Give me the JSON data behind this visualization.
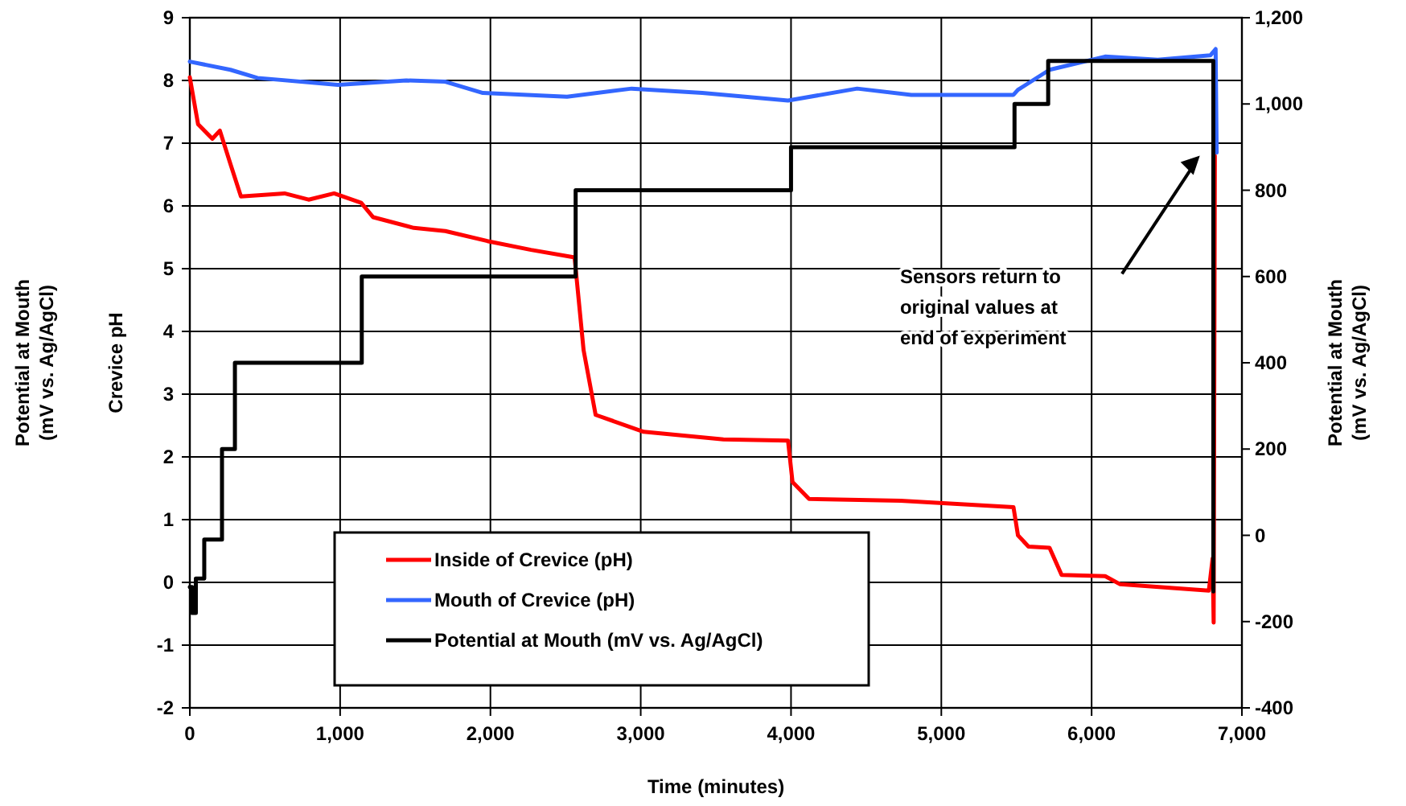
{
  "chart_data": {
    "type": "line",
    "xlabel": "Time (minutes)",
    "ylabel": "Crevice pH",
    "y2label": "Potential at Mouth (mV vs. Ag/AgCl)",
    "xlim": [
      0,
      7000
    ],
    "xticks": [
      0,
      {
        "value": 1000,
        "label": "1,000"
      },
      {
        "value": 2000,
        "label": "2,000"
      },
      {
        "value": 3000,
        "label": "3,000"
      },
      {
        "value": 4000,
        "label": "4,000"
      },
      {
        "value": 5000,
        "label": "5,000"
      },
      {
        "value": 6000,
        "label": "6,000"
      },
      {
        "value": 7000,
        "label": "7,000"
      }
    ],
    "ylim": [
      -2,
      9
    ],
    "yticks": [
      -2,
      -1,
      0,
      1,
      2,
      3,
      4,
      5,
      6,
      7,
      8,
      9
    ],
    "y2lim": [
      -400,
      1200
    ],
    "y2ticks": [
      -400,
      -200,
      0,
      200,
      400,
      600,
      800,
      {
        "value": 1000,
        "label": "1,000"
      },
      {
        "value": 1200,
        "label": "1,200"
      }
    ],
    "grid": true,
    "legend": "bottom left",
    "line_style": "solid",
    "annotations": [
      "Potential at Mouth (mV vs. Ag/AgCl)",
      "Sensors return to original values at end of experiment"
    ],
    "series": [
      {
        "name": "Inside of Crevice (pH)",
        "color": "#ff0000",
        "x": [
          0,
          55,
          150,
          200,
          270,
          340,
          630,
          790,
          960,
          1140,
          1220,
          1490,
          1700,
          1980,
          2270,
          2560,
          2620,
          2700,
          3020,
          3550,
          3980,
          4010,
          4120,
          4730,
          5480,
          5510,
          5580,
          5720,
          5800,
          6090,
          6190,
          6780,
          6805,
          6812,
          6820
        ],
        "values": [
          8.05,
          7.3,
          7.07,
          7.2,
          6.67,
          6.15,
          6.2,
          6.1,
          6.2,
          6.05,
          5.82,
          5.65,
          5.6,
          5.44,
          5.3,
          5.18,
          3.7,
          2.67,
          2.4,
          2.28,
          2.26,
          1.6,
          1.33,
          1.3,
          1.2,
          0.75,
          0.57,
          0.55,
          0.12,
          0.1,
          -0.03,
          -0.13,
          0.38,
          -0.64,
          6.8
        ]
      },
      {
        "name": "Mouth of Crevice (pH)",
        "color": "#3366ff",
        "x": [
          0,
          270,
          450,
          985,
          1440,
          1700,
          1950,
          2510,
          2940,
          3410,
          3980,
          4440,
          4800,
          5480,
          5510,
          5720,
          6090,
          6440,
          6790,
          6825,
          6832
        ],
        "values": [
          8.3,
          8.17,
          8.04,
          7.93,
          8.0,
          7.98,
          7.8,
          7.74,
          7.87,
          7.8,
          7.68,
          7.87,
          7.77,
          7.77,
          7.85,
          8.17,
          8.38,
          8.33,
          8.4,
          8.5,
          6.85
        ]
      },
      {
        "name": "Potential at Mouth (mV vs. Ag/AgCl)",
        "type": "step",
        "axis": "y2",
        "color": "#000000",
        "x": [
          0,
          15,
          40,
          96,
          214,
          300,
          1144,
          2567,
          4000,
          5487,
          5711,
          6810
        ],
        "values": [
          -120,
          -180,
          -100,
          -10,
          200,
          400,
          600,
          800,
          900,
          1000,
          1100,
          -130
        ]
      }
    ]
  }
}
